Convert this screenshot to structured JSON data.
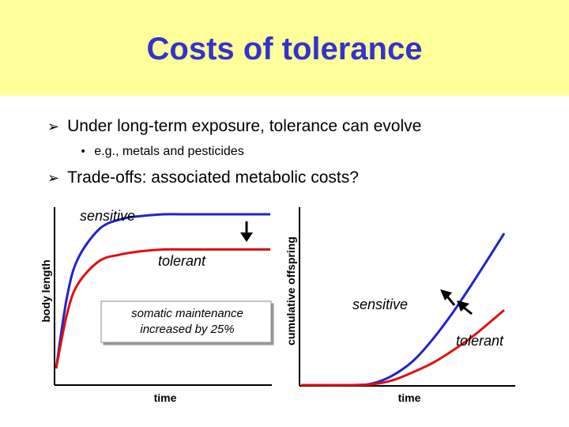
{
  "slide": {
    "title": "Costs of tolerance",
    "bullets": [
      {
        "text": "Under long-term exposure, tolerance can evolve",
        "glyph": "➢"
      },
      {
        "text": "e.g., metals and pesticides",
        "glyph": "•"
      },
      {
        "text": "Trade-offs: associated metabolic costs?",
        "glyph": "➢"
      }
    ]
  },
  "colors": {
    "title_bg": "#ffff99",
    "title_text": "#3333cc",
    "sensitive": "#2222cc",
    "tolerant": "#dd1111"
  },
  "chart_data": [
    {
      "type": "line",
      "xlabel": "time",
      "ylabel": "body length",
      "series": [
        {
          "name": "sensitive",
          "x": [
            0,
            0.05,
            0.1,
            0.2,
            0.3,
            0.4,
            0.5,
            0.6,
            0.8,
            1.0
          ],
          "y": [
            0.08,
            0.5,
            0.73,
            0.91,
            0.97,
            0.99,
            1.0,
            1.0,
            1.0,
            1.0
          ]
        },
        {
          "name": "tolerant",
          "x": [
            0,
            0.05,
            0.1,
            0.2,
            0.3,
            0.4,
            0.5,
            0.6,
            0.8,
            1.0
          ],
          "y": [
            0.08,
            0.4,
            0.58,
            0.72,
            0.76,
            0.78,
            0.79,
            0.79,
            0.79,
            0.79
          ]
        }
      ],
      "annotations": [
        "somatic maintenance increased by 25%"
      ],
      "marker": "down-arrow between curves at right"
    },
    {
      "type": "line",
      "xlabel": "time",
      "ylabel": "cumulative offspring",
      "series": [
        {
          "name": "sensitive",
          "x": [
            0,
            0.25,
            0.35,
            0.45,
            0.55,
            0.65,
            0.75,
            0.85,
            1.0
          ],
          "y": [
            0,
            0,
            0.01,
            0.06,
            0.15,
            0.29,
            0.46,
            0.65,
            0.95
          ]
        },
        {
          "name": "tolerant",
          "x": [
            0,
            0.25,
            0.35,
            0.45,
            0.55,
            0.65,
            0.75,
            0.85,
            1.0
          ],
          "y": [
            0,
            0,
            0.005,
            0.03,
            0.08,
            0.14,
            0.22,
            0.31,
            0.47
          ]
        }
      ],
      "marker": "up-left arrows at curve ends"
    }
  ]
}
